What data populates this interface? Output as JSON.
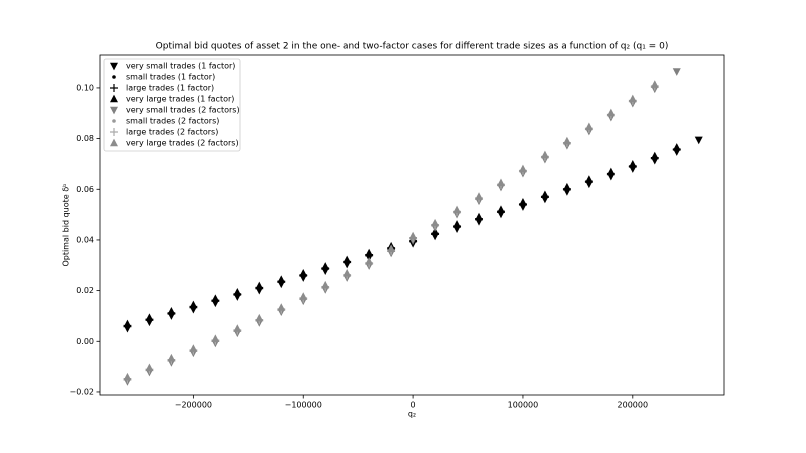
{
  "chart_data": {
    "type": "scatter",
    "title": "Optimal bid quotes of asset 2 in the one- and two-factor cases for different trade sizes as a function of q₂ (q₁ = 0)",
    "x_label": "q₂",
    "y_label": "Optimal bid quote δᵇ",
    "xlim": [
      -285000,
      283000
    ],
    "ylim": [
      -0.0212,
      0.113
    ],
    "xticks": [
      {
        "value": -200000,
        "label": "−200000"
      },
      {
        "value": -100000,
        "label": "−100000"
      },
      0,
      100000,
      200000
    ],
    "yticks": [
      {
        "value": -0.02,
        "label": "−0.02"
      },
      {
        "value": 0,
        "label": "0.00"
      },
      0.02,
      0.04,
      0.06,
      0.08,
      {
        "value": 0.1,
        "label": "0.10"
      }
    ],
    "legend": "upper left",
    "series": [
      {
        "name": "very small trades (1 factor)",
        "color": "#000000",
        "marker": "v",
        "x": [
          -260000,
          -240000,
          -220000,
          -200000,
          -180000,
          -160000,
          -140000,
          -120000,
          -100000,
          -80000,
          -60000,
          -40000,
          -20000,
          0,
          20000,
          40000,
          60000,
          80000,
          100000,
          120000,
          140000,
          160000,
          180000,
          200000,
          220000,
          240000,
          260000
        ],
        "values": [
          0.0052,
          0.0077,
          0.0102,
          0.0127,
          0.0152,
          0.0177,
          0.0202,
          0.0227,
          0.0252,
          0.0279,
          0.0305,
          0.0332,
          0.0359,
          0.0387,
          0.0416,
          0.0445,
          0.0474,
          0.0503,
          0.0532,
          0.0562,
          0.0592,
          0.0622,
          0.0652,
          0.0682,
          0.0715,
          0.0749,
          0.0795
        ]
      },
      {
        "name": "small trades (1 factor)",
        "color": "#000000",
        "marker": ".",
        "x": [
          -260000,
          -240000,
          -220000,
          -200000,
          -180000,
          -160000,
          -140000,
          -120000,
          -100000,
          -80000,
          -60000,
          -40000,
          -20000,
          0,
          20000,
          40000,
          60000,
          80000,
          100000,
          120000,
          140000,
          160000,
          180000,
          200000,
          220000,
          240000
        ],
        "values": [
          0.006,
          0.0085,
          0.011,
          0.0135,
          0.016,
          0.0185,
          0.021,
          0.0235,
          0.026,
          0.0287,
          0.0313,
          0.034,
          0.0367,
          0.0395,
          0.0424,
          0.0453,
          0.0482,
          0.0511,
          0.054,
          0.057,
          0.06,
          0.063,
          0.066,
          0.069,
          0.0723,
          0.0757
        ]
      },
      {
        "name": "large trades (1 factor)",
        "color": "#000000",
        "marker": "+",
        "x": [
          -260000,
          -240000,
          -220000,
          -200000,
          -180000,
          -160000,
          -140000,
          -120000,
          -100000,
          -80000,
          -60000,
          -40000,
          -20000,
          0,
          20000,
          40000,
          60000,
          80000,
          100000,
          120000,
          140000,
          160000,
          180000,
          200000,
          220000,
          240000
        ],
        "values": [
          0.006,
          0.0085,
          0.011,
          0.0135,
          0.016,
          0.0185,
          0.021,
          0.0235,
          0.026,
          0.0287,
          0.0313,
          0.034,
          0.0367,
          0.0395,
          0.0424,
          0.0453,
          0.0482,
          0.0511,
          0.054,
          0.057,
          0.06,
          0.063,
          0.066,
          0.069,
          0.0723,
          0.0757
        ]
      },
      {
        "name": "very large trades (1 factor)",
        "color": "#000000",
        "marker": "^",
        "x": [
          -260000,
          -240000,
          -220000,
          -200000,
          -180000,
          -160000,
          -140000,
          -120000,
          -100000,
          -80000,
          -60000,
          -40000,
          -20000,
          0,
          20000,
          40000,
          60000,
          80000,
          100000,
          120000,
          140000,
          160000,
          180000,
          200000,
          220000,
          240000
        ],
        "values": [
          0.0068,
          0.0093,
          0.0118,
          0.0143,
          0.0168,
          0.0193,
          0.0218,
          0.0243,
          0.0268,
          0.0295,
          0.0321,
          0.0348,
          0.0375,
          0.0403,
          0.0432,
          0.0461,
          0.049,
          0.0519,
          0.0548,
          0.0578,
          0.0608,
          0.0638,
          0.0668,
          0.0698,
          0.0731,
          0.0765
        ]
      },
      {
        "name": "very small trades (2 factors)",
        "color": "#808080",
        "marker": "v",
        "x": [
          -260000,
          -240000,
          -220000,
          -200000,
          -180000,
          -160000,
          -140000,
          -120000,
          -100000,
          -80000,
          -60000,
          -40000,
          -20000,
          0,
          20000,
          40000,
          60000,
          80000,
          100000,
          120000,
          140000,
          160000,
          180000,
          200000,
          220000,
          240000
        ],
        "values": [
          -0.0158,
          -0.0121,
          -0.0083,
          -0.0045,
          -0.0006,
          0.0034,
          0.0075,
          0.0117,
          0.016,
          0.0205,
          0.0252,
          0.0299,
          0.0349,
          0.0399,
          0.045,
          0.0502,
          0.0555,
          0.0609,
          0.0664,
          0.0719,
          0.0774,
          0.083,
          0.0885,
          0.094,
          0.0997,
          0.1065
        ]
      },
      {
        "name": "small trades (2 factors)",
        "color": "#999999",
        "marker": ".",
        "x": [
          -260000,
          -240000,
          -220000,
          -200000,
          -180000,
          -160000,
          -140000,
          -120000,
          -100000,
          -80000,
          -60000,
          -40000,
          -20000,
          0,
          20000,
          40000,
          60000,
          80000,
          100000,
          120000,
          140000,
          160000,
          180000,
          200000,
          220000
        ],
        "values": [
          -0.015,
          -0.0113,
          -0.0075,
          -0.0037,
          0.0002,
          0.0042,
          0.0083,
          0.0125,
          0.0168,
          0.0213,
          0.026,
          0.0307,
          0.0357,
          0.0407,
          0.0458,
          0.051,
          0.0563,
          0.0617,
          0.0672,
          0.0727,
          0.0782,
          0.0838,
          0.0893,
          0.0948,
          0.1005
        ]
      },
      {
        "name": "large trades (2 factors)",
        "color": "#aaaaaa",
        "marker": "+",
        "x": [
          -260000,
          -240000,
          -220000,
          -200000,
          -180000,
          -160000,
          -140000,
          -120000,
          -100000,
          -80000,
          -60000,
          -40000,
          -20000,
          0,
          20000,
          40000,
          60000,
          80000,
          100000,
          120000,
          140000,
          160000,
          180000,
          200000,
          220000
        ],
        "values": [
          -0.015,
          -0.0113,
          -0.0075,
          -0.0037,
          0.0002,
          0.0042,
          0.0083,
          0.0125,
          0.0168,
          0.0213,
          0.026,
          0.0307,
          0.0357,
          0.0407,
          0.0458,
          0.051,
          0.0563,
          0.0617,
          0.0672,
          0.0727,
          0.0782,
          0.0838,
          0.0893,
          0.0948,
          0.1005
        ]
      },
      {
        "name": "very large trades (2 factors)",
        "color": "#8c8c8c",
        "marker": "^",
        "x": [
          -260000,
          -240000,
          -220000,
          -200000,
          -180000,
          -160000,
          -140000,
          -120000,
          -100000,
          -80000,
          -60000,
          -40000,
          -20000,
          0,
          20000,
          40000,
          60000,
          80000,
          100000,
          120000,
          140000,
          160000,
          180000,
          200000,
          220000
        ],
        "values": [
          -0.0142,
          -0.0105,
          -0.0067,
          -0.0029,
          0.001,
          0.005,
          0.0091,
          0.0133,
          0.0176,
          0.0221,
          0.0268,
          0.0315,
          0.0365,
          0.0415,
          0.0466,
          0.0518,
          0.0571,
          0.0625,
          0.068,
          0.0735,
          0.079,
          0.0846,
          0.0901,
          0.0956,
          0.1013
        ]
      }
    ]
  }
}
